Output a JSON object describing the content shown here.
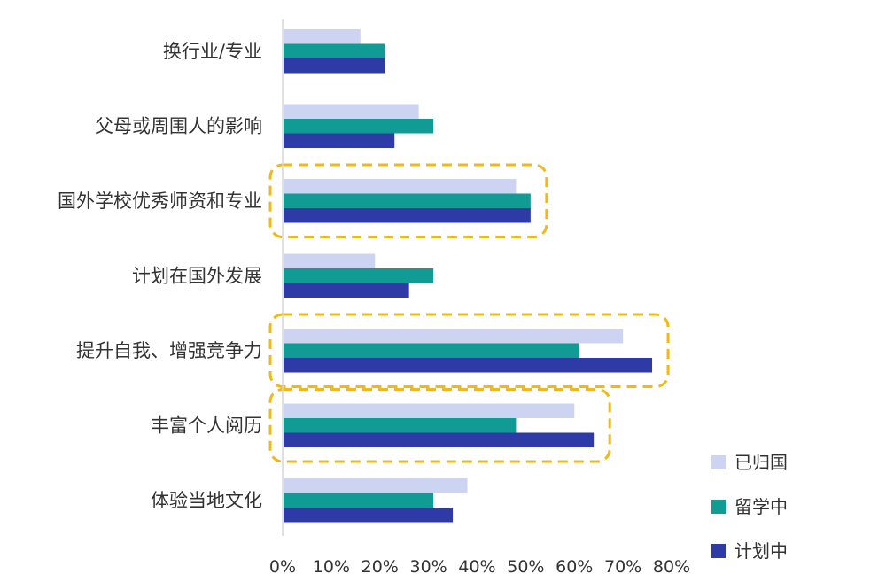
{
  "chart_data": {
    "type": "bar",
    "orientation": "horizontal",
    "title": "",
    "xlabel": "",
    "ylabel": "",
    "xlim": [
      0,
      0.8
    ],
    "x_ticks": [
      0,
      0.1,
      0.2,
      0.3,
      0.4,
      0.5,
      0.6,
      0.7,
      0.8
    ],
    "x_tick_labels": [
      "0%",
      "10%",
      "20%",
      "30%",
      "40%",
      "50%",
      "60%",
      "70%",
      "80%"
    ],
    "grid": false,
    "legend_position": "bottom-right",
    "categories": [
      "换行业/专业",
      "父母或周围人的影响",
      "国外学校优秀师资和专业",
      "计划在国外发展",
      "提升自我、增强竞争力",
      "丰富个人阅历",
      "体验当地文化"
    ],
    "series": [
      {
        "name": "已归国",
        "color": "#cdd4f2",
        "values": [
          0.16,
          0.28,
          0.48,
          0.19,
          0.7,
          0.6,
          0.38
        ]
      },
      {
        "name": "留学中",
        "color": "#119b95",
        "values": [
          0.21,
          0.31,
          0.51,
          0.31,
          0.61,
          0.48,
          0.31
        ]
      },
      {
        "name": "计划中",
        "color": "#2e3aa6",
        "values": [
          0.21,
          0.23,
          0.51,
          0.26,
          0.76,
          0.64,
          0.35
        ]
      }
    ],
    "highlighted_categories": [
      "国外学校优秀师资和专业",
      "提升自我、增强竞争力",
      "丰富个人阅历"
    ],
    "highlight_color": "#f0b914"
  }
}
